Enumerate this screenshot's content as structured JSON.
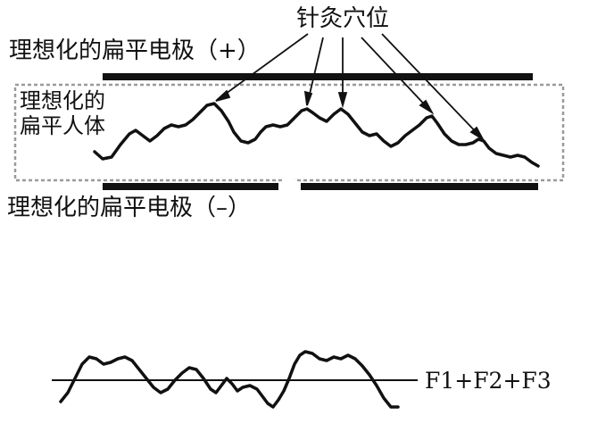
{
  "labels": {
    "acupoints": "针灸穴位",
    "electrode_top": "理想化的扁平电极（+）",
    "body": "理想化的\n扁平人体",
    "electrode_bottom": "理想化的扁平电极（–）",
    "formula": "F1+F2+F3"
  },
  "colors": {
    "ink": "#111111",
    "box": "#9a9a9a"
  }
}
